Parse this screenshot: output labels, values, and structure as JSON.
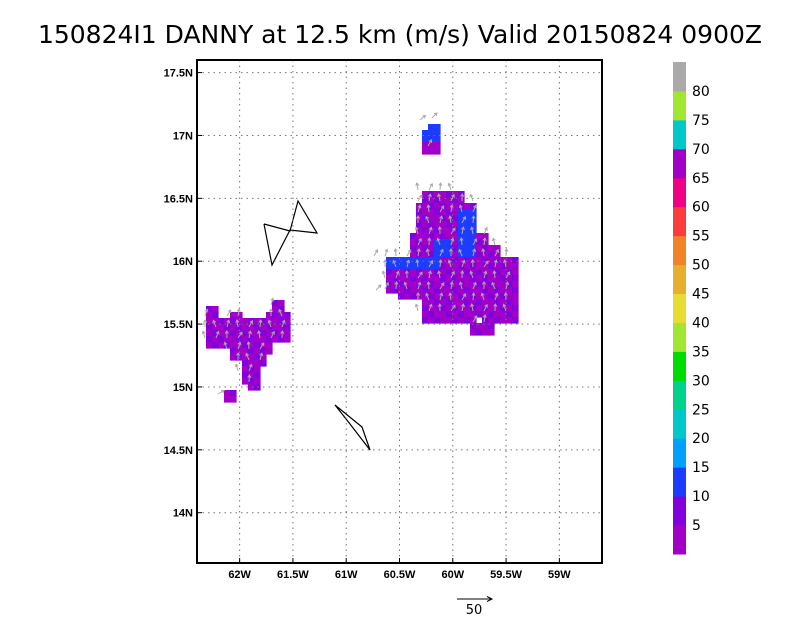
{
  "title": "150824I1 DANNY at 12.5 km (m/s) Valid 20150824 0900Z",
  "map": {
    "lon_range": [
      -62.4,
      -58.6
    ],
    "lat_range": [
      13.6,
      17.6
    ],
    "grid": "dotted",
    "x_ticks": [
      {
        "lon": -62.0,
        "label": "62W"
      },
      {
        "lon": -61.5,
        "label": "61.5W"
      },
      {
        "lon": -61.0,
        "label": "61W"
      },
      {
        "lon": -60.5,
        "label": "60.5W"
      },
      {
        "lon": -60.0,
        "label": "60W"
      },
      {
        "lon": -59.5,
        "label": "59.5W"
      },
      {
        "lon": -59.0,
        "label": "59W"
      }
    ],
    "y_ticks": [
      {
        "lat": 14.0,
        "label": "14N"
      },
      {
        "lat": 14.5,
        "label": "14.5N"
      },
      {
        "lat": 15.0,
        "label": "15N"
      },
      {
        "lat": 15.5,
        "label": "15.5N"
      },
      {
        "lat": 16.0,
        "label": "16N"
      },
      {
        "lat": 16.5,
        "label": "16.5N"
      },
      {
        "lat": 17.0,
        "label": "17N"
      },
      {
        "lat": 17.5,
        "label": "17.5N"
      }
    ]
  },
  "colorbar": {
    "placement": "right",
    "colors": [
      "#a000c8",
      "#8200dc",
      "#1e3cff",
      "#00a0ff",
      "#00c8c8",
      "#00d28c",
      "#00dc00",
      "#a0e632",
      "#e6dc32",
      "#e6af2d",
      "#f08228",
      "#fa3c3c",
      "#f00082",
      "#a000c8",
      "#00c8c8",
      "#a0e632",
      "#aaaaaa"
    ],
    "labels": [
      "5",
      "10",
      "15",
      "20",
      "25",
      "30",
      "35",
      "40",
      "45",
      "50",
      "55",
      "60",
      "65",
      "70",
      "75",
      "80"
    ]
  },
  "reference_vector": {
    "label": "50",
    "color": "#000000"
  },
  "colors": {
    "speed_0_5": "#a000c8",
    "speed_5_10": "#8200dc",
    "speed_10_15": "#1e3cff",
    "vector": "#aaaaaa",
    "coast": "#000000"
  }
}
